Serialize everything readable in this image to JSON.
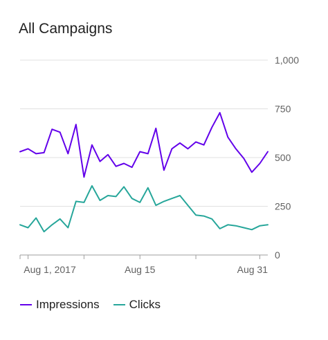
{
  "title": "All Campaigns",
  "chart_data": {
    "type": "line",
    "title": "All Campaigns",
    "xlabel": "",
    "ylabel": "",
    "ylim": [
      0,
      1000
    ],
    "y_ticks": [
      "1,000",
      "750",
      "500",
      "250",
      "0"
    ],
    "y_tick_values": [
      1000,
      750,
      500,
      250,
      0
    ],
    "x_tick_labels": [
      "Aug 1, 2017",
      "Aug 15",
      "Aug 31"
    ],
    "x": [
      "Jul 31",
      "Aug 1",
      "Aug 2",
      "Aug 3",
      "Aug 4",
      "Aug 5",
      "Aug 6",
      "Aug 7",
      "Aug 8",
      "Aug 9",
      "Aug 10",
      "Aug 11",
      "Aug 12",
      "Aug 13",
      "Aug 14",
      "Aug 15",
      "Aug 16",
      "Aug 17",
      "Aug 18",
      "Aug 19",
      "Aug 20",
      "Aug 21",
      "Aug 22",
      "Aug 23",
      "Aug 24",
      "Aug 25",
      "Aug 26",
      "Aug 27",
      "Aug 28",
      "Aug 29",
      "Aug 30",
      "Aug 31"
    ],
    "grid": true,
    "legend_position": "bottom-left",
    "series": [
      {
        "name": "Impressions",
        "color": "#6200ea",
        "values": [
          530,
          545,
          520,
          525,
          645,
          630,
          520,
          670,
          400,
          565,
          480,
          515,
          455,
          470,
          450,
          530,
          520,
          650,
          435,
          545,
          575,
          545,
          580,
          565,
          655,
          730,
          605,
          545,
          495,
          425,
          470,
          530
        ]
      },
      {
        "name": "Clicks",
        "color": "#26a69a",
        "values": [
          155,
          140,
          190,
          120,
          155,
          185,
          140,
          275,
          270,
          355,
          280,
          305,
          300,
          350,
          290,
          270,
          345,
          255,
          275,
          290,
          305,
          255,
          205,
          200,
          185,
          135,
          155,
          150,
          140,
          130,
          150,
          155
        ]
      }
    ]
  },
  "legend": {
    "items": [
      {
        "label": "Impressions",
        "color": "#6200ea"
      },
      {
        "label": "Clicks",
        "color": "#26a69a"
      }
    ]
  }
}
